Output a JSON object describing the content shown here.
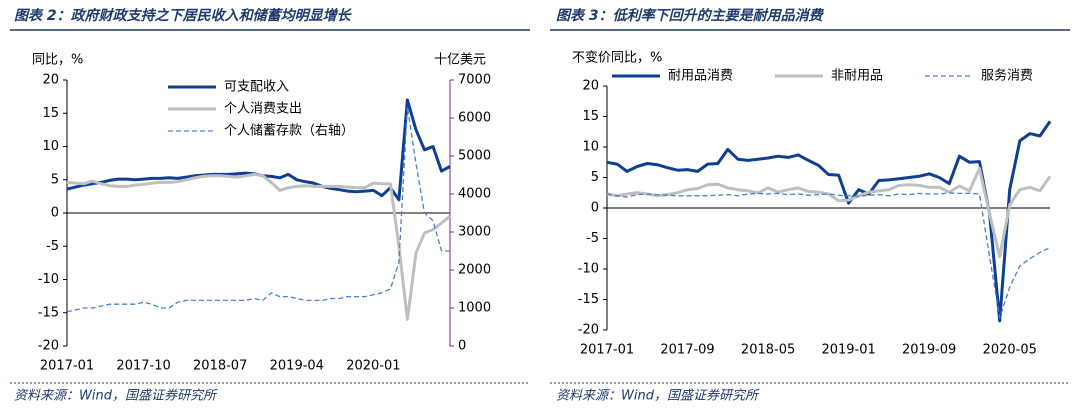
{
  "chart_data": [
    {
      "type": "line",
      "title": "图表 2：政府财政支持之下居民收入和储蓄均明显增长",
      "ylabel": "同比，%",
      "y2label": "十亿美元",
      "source": "资料来源：Wind，国盛证券研究所",
      "legend": "upper-left",
      "categories": [
        "2017-01",
        null,
        null,
        null,
        null,
        null,
        null,
        null,
        null,
        "2017-10",
        null,
        null,
        null,
        null,
        null,
        null,
        null,
        null,
        "2018-07",
        null,
        null,
        null,
        null,
        null,
        null,
        null,
        null,
        "2019-04",
        null,
        null,
        null,
        null,
        null,
        null,
        null,
        null,
        "2020-01",
        null,
        null,
        null,
        null,
        null,
        null,
        null,
        null,
        null
      ],
      "ylim": [
        -20,
        20
      ],
      "yticks": [
        -20,
        -15,
        -10,
        -5,
        0,
        5,
        10,
        15,
        20
      ],
      "y2lim": [
        0,
        7000
      ],
      "y2ticks": [
        0,
        1000,
        2000,
        3000,
        4000,
        5000,
        6000,
        7000
      ],
      "series": [
        {
          "name": "可支配收入",
          "color": "#0e3f92",
          "style": "solid",
          "values": [
            3.6,
            3.9,
            4.2,
            4.4,
            4.6,
            4.9,
            5.1,
            5.1,
            5.0,
            5.1,
            5.2,
            5.2,
            5.3,
            5.2,
            5.4,
            5.6,
            5.7,
            5.8,
            5.8,
            5.8,
            5.9,
            6.0,
            5.9,
            5.6,
            5.5,
            5.3,
            5.8,
            5.0,
            4.7,
            4.5,
            4.0,
            3.7,
            3.5,
            3.3,
            3.2,
            3.3,
            3.4,
            2.6,
            3.8,
            2.0,
            17.0,
            12.5,
            9.5,
            10.0,
            6.3,
            7.0
          ]
        },
        {
          "name": "个人消费支出",
          "color": "#bfbfbf",
          "style": "solid",
          "values": [
            4.6,
            4.5,
            4.4,
            4.8,
            4.4,
            4.1,
            4.0,
            4.0,
            4.2,
            4.3,
            4.5,
            4.6,
            4.6,
            4.7,
            5.0,
            5.3,
            5.5,
            5.6,
            5.6,
            5.5,
            5.4,
            5.6,
            5.8,
            5.6,
            4.6,
            3.4,
            3.8,
            4.0,
            4.1,
            4.0,
            4.0,
            4.0,
            4.0,
            3.9,
            3.8,
            3.8,
            4.5,
            4.4,
            4.4,
            -5.0,
            -16.0,
            -6.0,
            -3.0,
            -2.5,
            -1.5,
            -0.5
          ]
        },
        {
          "name": "个人储蓄存款（右轴）",
          "color": "#4a7fd0",
          "style": "dashed",
          "axis": "y2",
          "values": [
            900,
            950,
            1000,
            1000,
            1050,
            1100,
            1100,
            1100,
            1100,
            1150,
            1100,
            1000,
            1000,
            1150,
            1200,
            1200,
            1200,
            1200,
            1200,
            1200,
            1200,
            1200,
            1250,
            1200,
            1400,
            1300,
            1300,
            1250,
            1200,
            1200,
            1200,
            1250,
            1250,
            1300,
            1300,
            1300,
            1350,
            1400,
            1500,
            2200,
            6300,
            4800,
            3500,
            3300,
            2500,
            2500
          ]
        }
      ]
    },
    {
      "type": "line",
      "title": "图表 3：低利率下回升的主要是耐用品消费",
      "ylabel": "不变价同比，%",
      "source": "资料来源：Wind，国盛证券研究所",
      "legend": "top",
      "categories": [
        "2017-01",
        null,
        null,
        null,
        null,
        null,
        null,
        null,
        "2017-09",
        null,
        null,
        null,
        null,
        null,
        null,
        null,
        "2018-05",
        null,
        null,
        null,
        null,
        null,
        null,
        null,
        "2019-01",
        null,
        null,
        null,
        null,
        null,
        null,
        null,
        "2019-09",
        null,
        null,
        null,
        null,
        null,
        null,
        null,
        "2020-05",
        null,
        null,
        null,
        null
      ],
      "ylim": [
        -20,
        20
      ],
      "yticks": [
        -20,
        -15,
        -10,
        -5,
        0,
        5,
        10,
        15,
        20
      ],
      "series": [
        {
          "name": "耐用品消费",
          "color": "#0e3f92",
          "style": "solid",
          "values": [
            7.5,
            7.2,
            6.0,
            6.8,
            7.3,
            7.1,
            6.6,
            6.2,
            6.3,
            6.0,
            7.2,
            7.3,
            9.6,
            8.0,
            7.8,
            8.0,
            8.2,
            8.5,
            8.3,
            8.7,
            7.8,
            7.0,
            5.5,
            5.4,
            0.8,
            3.0,
            2.3,
            4.5,
            4.6,
            4.8,
            5.0,
            5.2,
            5.6,
            5.0,
            4.0,
            8.5,
            7.5,
            7.6,
            -1.0,
            -18.5,
            3.0,
            11.0,
            12.2,
            11.8,
            14.2
          ]
        },
        {
          "name": "非耐用品",
          "color": "#bfbfbf",
          "style": "solid",
          "values": [
            2.3,
            2.0,
            2.3,
            2.5,
            2.3,
            2.0,
            2.2,
            2.5,
            3.0,
            3.2,
            3.8,
            3.9,
            3.3,
            3.0,
            2.8,
            2.5,
            3.3,
            2.6,
            3.0,
            3.3,
            2.7,
            2.6,
            2.3,
            1.2,
            1.3,
            2.0,
            2.6,
            2.8,
            3.0,
            3.7,
            3.8,
            3.7,
            3.4,
            3.4,
            2.6,
            3.6,
            2.8,
            6.5,
            -1.0,
            -8.0,
            0.5,
            3.0,
            3.4,
            2.8,
            5.2
          ]
        },
        {
          "name": "服务消费",
          "color": "#4a7fd0",
          "style": "dashed",
          "values": [
            2.3,
            2.0,
            1.8,
            2.2,
            2.3,
            2.2,
            2.1,
            2.0,
            2.0,
            2.0,
            2.0,
            2.1,
            2.2,
            2.0,
            2.3,
            2.4,
            2.3,
            2.4,
            2.2,
            2.3,
            2.1,
            2.2,
            2.3,
            2.1,
            2.0,
            1.9,
            2.1,
            2.2,
            2.0,
            2.3,
            2.2,
            2.4,
            2.3,
            2.3,
            2.5,
            2.4,
            2.4,
            2.3,
            -8.0,
            -18.0,
            -13.0,
            -9.5,
            -8.3,
            -7.3,
            -6.5
          ]
        }
      ]
    }
  ]
}
